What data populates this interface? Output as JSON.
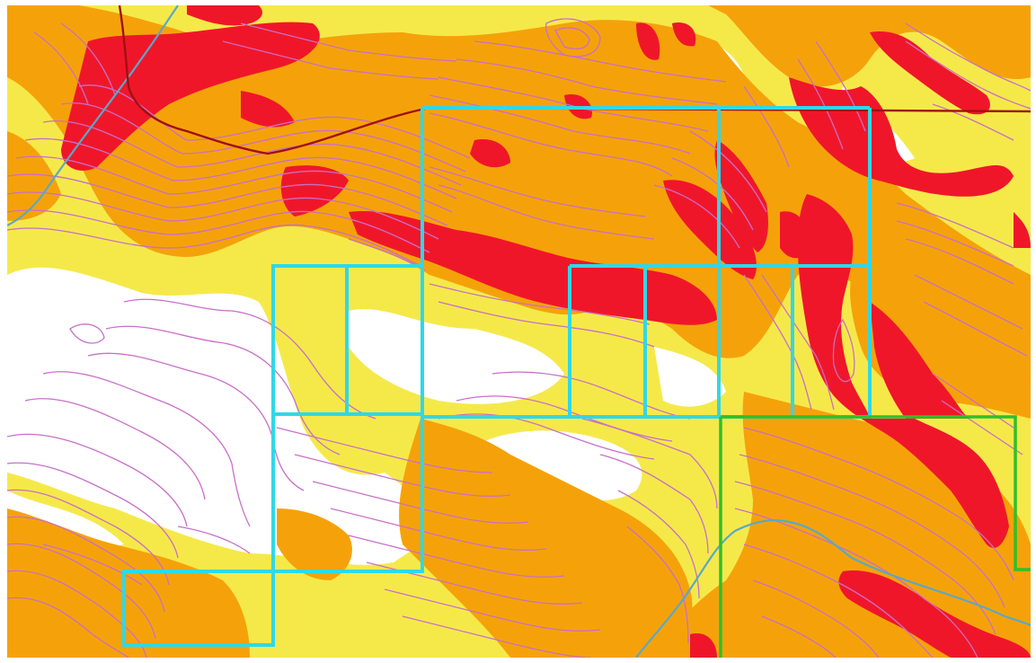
{
  "map": {
    "colors": {
      "background": "#ffffff",
      "slope_low": "#f5e94a",
      "slope_medium": "#f5a20a",
      "slope_high": "#f0162a",
      "contour": "#c86fc8",
      "parcel_boundary": "#2fd8e8",
      "green_boundary": "#2ec02a",
      "road": "#a01010",
      "stream": "#5aa8c8"
    },
    "icons": {
      "contours": "contour-lines",
      "parcels": "parcel-outline",
      "road": "road-line",
      "stream": "stream-line"
    }
  }
}
